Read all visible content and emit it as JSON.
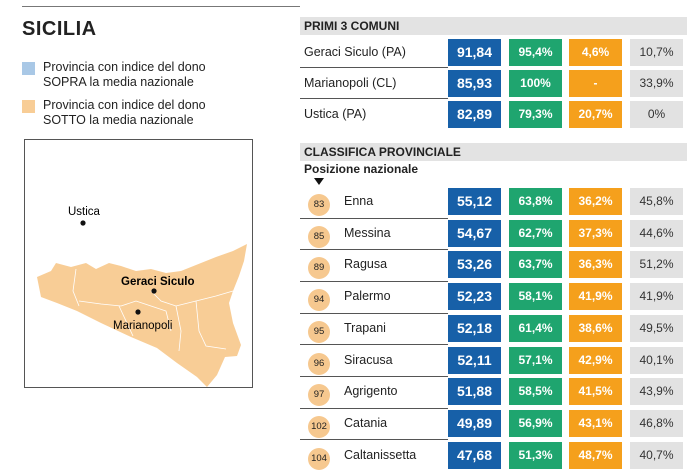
{
  "title": "SICILIA",
  "legend": [
    {
      "line1": "Provincia con indice del dono",
      "line2": "SOPRA la media nazionale",
      "color": "#a9c8e6"
    },
    {
      "line1": "Provincia con indice del dono",
      "line2": "SOTTO la media nazionale",
      "color": "#f8cd96"
    }
  ],
  "map": {
    "labels": {
      "ustica": "Ustica",
      "geraci": "Geraci Siculo",
      "marianopoli": "Marianopoli"
    },
    "fill": "#f8cd96"
  },
  "top3": {
    "title": "PRIMI 3 COMUNI",
    "rows": [
      {
        "name": "Geraci Siculo (PA)",
        "index": "91,84",
        "green": "95,4%",
        "orange": "4,6%",
        "grey": "10,7%"
      },
      {
        "name": "Marianopoli (CL)",
        "index": "85,93",
        "green": "100%",
        "orange": "-",
        "grey": "33,9%"
      },
      {
        "name": "Ustica (PA)",
        "index": "82,89",
        "green": "79,3%",
        "orange": "20,7%",
        "grey": "0%"
      }
    ]
  },
  "provinces": {
    "title": "CLASSIFICA PROVINCIALE",
    "position_label": "Posizione nazionale",
    "rows": [
      {
        "pos": "83",
        "name": "Enna",
        "index": "55,12",
        "green": "63,8%",
        "orange": "36,2%",
        "grey": "45,8%"
      },
      {
        "pos": "85",
        "name": "Messina",
        "index": "54,67",
        "green": "62,7%",
        "orange": "37,3%",
        "grey": "44,6%"
      },
      {
        "pos": "89",
        "name": "Ragusa",
        "index": "53,26",
        "green": "63,7%",
        "orange": "36,3%",
        "grey": "51,2%"
      },
      {
        "pos": "94",
        "name": "Palermo",
        "index": "52,23",
        "green": "58,1%",
        "orange": "41,9%",
        "grey": "41,9%"
      },
      {
        "pos": "95",
        "name": "Trapani",
        "index": "52,18",
        "green": "61,4%",
        "orange": "38,6%",
        "grey": "49,5%"
      },
      {
        "pos": "96",
        "name": "Siracusa",
        "index": "52,11",
        "green": "57,1%",
        "orange": "42,9%",
        "grey": "40,1%"
      },
      {
        "pos": "97",
        "name": "Agrigento",
        "index": "51,88",
        "green": "58,5%",
        "orange": "41,5%",
        "grey": "43,9%"
      },
      {
        "pos": "102",
        "name": "Catania",
        "index": "49,89",
        "green": "56,9%",
        "orange": "43,1%",
        "grey": "46,8%"
      },
      {
        "pos": "104",
        "name": "Caltanissetta",
        "index": "47,68",
        "green": "51,3%",
        "orange": "48,7%",
        "grey": "40,7%"
      }
    ]
  }
}
